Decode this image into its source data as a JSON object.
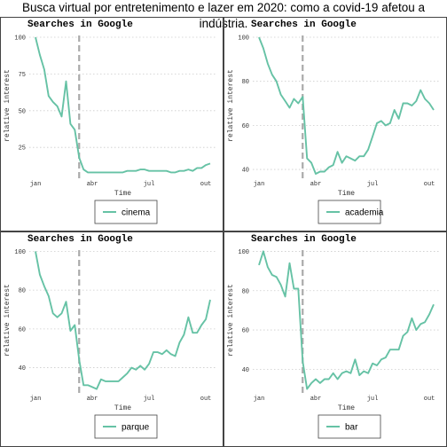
{
  "page": {
    "title": "Busca virtual por entretenimento e lazer em 2020: como a covid-19 afetou a indústria."
  },
  "colors": {
    "series": "#66c2a5",
    "vline": "#aaaaaa",
    "grid": "#cccccc",
    "border": "#444444"
  },
  "chart_data": [
    {
      "type": "line",
      "title": "Searches in Google",
      "xlabel": "Time",
      "ylabel": "relative interest",
      "x_ticks": [
        "jan",
        "abr",
        "jul",
        "out"
      ],
      "y_ticks": [
        25,
        50,
        75,
        100
      ],
      "ylim": [
        4,
        103
      ],
      "vline_week": 10,
      "grid": "horizontal dotted",
      "legend": "bottom",
      "series": [
        {
          "name": "cinema",
          "values": [
            100,
            88,
            78,
            60,
            56,
            53,
            46,
            70,
            41,
            37,
            18,
            10,
            8,
            8,
            8,
            8,
            8,
            8,
            8,
            8,
            8,
            9,
            9,
            9,
            10,
            10,
            9,
            9,
            9,
            9,
            9,
            8,
            8,
            9,
            9,
            10,
            9,
            11,
            11,
            13,
            14
          ]
        }
      ]
    },
    {
      "type": "line",
      "title": "Searches in Google",
      "xlabel": "Time",
      "ylabel": "relative interest",
      "x_ticks": [
        "jan",
        "abr",
        "jul",
        "out"
      ],
      "y_ticks": [
        40,
        60,
        80,
        100
      ],
      "ylim": [
        36,
        102
      ],
      "vline_week": 10,
      "grid": "horizontal dotted",
      "legend": "bottom",
      "series": [
        {
          "name": "academia",
          "values": [
            100,
            95,
            88,
            83,
            80,
            74,
            71,
            68,
            72,
            70,
            73,
            45,
            43,
            38,
            39,
            39,
            41,
            42,
            48,
            43,
            46,
            45,
            44,
            46,
            46,
            49,
            55,
            61,
            62,
            60,
            61,
            67,
            63,
            70,
            70,
            69,
            71,
            76,
            72,
            70,
            67
          ]
        }
      ]
    },
    {
      "type": "line",
      "title": "Searches in Google",
      "xlabel": "Time",
      "ylabel": "relative interest",
      "x_ticks": [
        "jan",
        "abr",
        "jul",
        "out"
      ],
      "y_ticks": [
        40,
        60,
        80,
        100
      ],
      "ylim": [
        27,
        102
      ],
      "vline_week": 10,
      "grid": "horizontal dotted",
      "legend": "bottom",
      "series": [
        {
          "name": "parque",
          "values": [
            100,
            88,
            82,
            77,
            68,
            66,
            68,
            74,
            59,
            62,
            44,
            31,
            31,
            30,
            29,
            34,
            33,
            33,
            33,
            33,
            35,
            37,
            40,
            39,
            41,
            39,
            42,
            48,
            48,
            47,
            49,
            47,
            46,
            53,
            57,
            66,
            58,
            58,
            62,
            65,
            75
          ]
        }
      ]
    },
    {
      "type": "line",
      "title": "Searches in Google",
      "xlabel": "Time",
      "ylabel": "relative interest",
      "x_ticks": [
        "jan",
        "abr",
        "jul",
        "out"
      ],
      "y_ticks": [
        40,
        60,
        80,
        100
      ],
      "ylim": [
        28,
        102
      ],
      "vline_week": 10,
      "grid": "horizontal dotted",
      "legend": "bottom",
      "series": [
        {
          "name": "bar",
          "values": [
            93,
            100,
            92,
            88,
            87,
            83,
            77,
            94,
            81,
            81,
            44,
            30,
            33,
            35,
            33,
            35,
            35,
            38,
            35,
            38,
            39,
            38,
            45,
            37,
            39,
            38,
            43,
            42,
            45,
            46,
            50,
            50,
            50,
            57,
            59,
            66,
            60,
            63,
            64,
            68,
            73
          ]
        }
      ]
    }
  ]
}
